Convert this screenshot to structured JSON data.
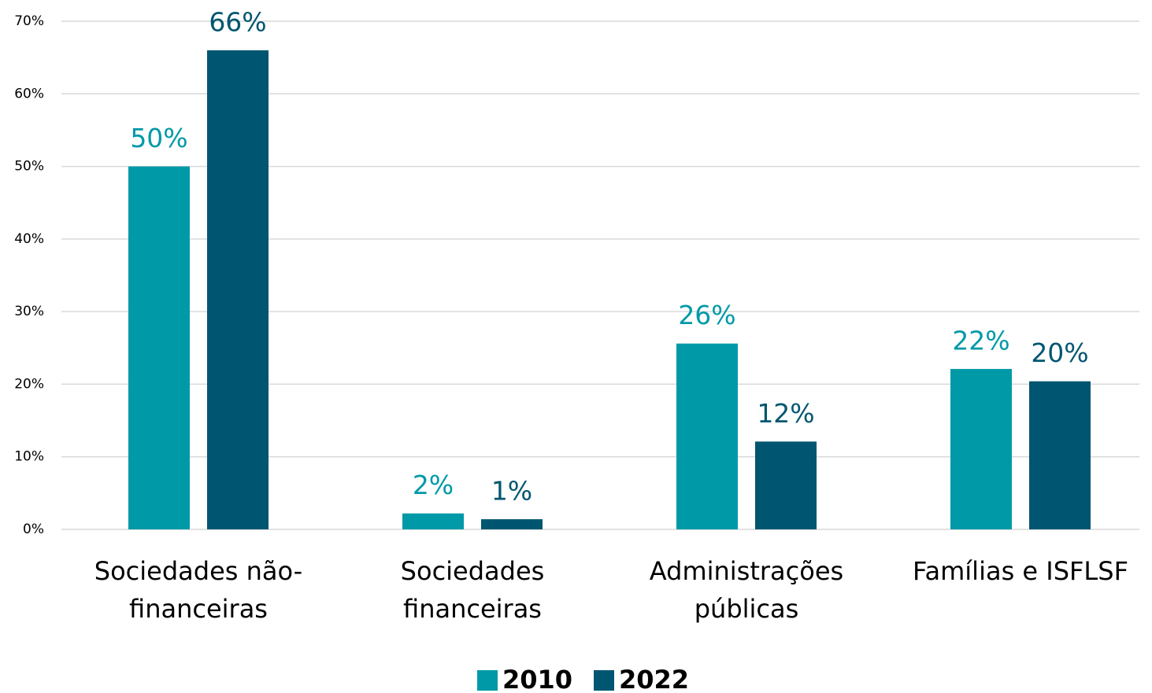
{
  "chart_data": {
    "type": "bar",
    "categories": [
      "Sociedades não-financeiras",
      "Sociedades financeiras",
      "Administrações públicas",
      "Famílias e ISFLSF"
    ],
    "series": [
      {
        "name": "2010",
        "color": "#0099a8",
        "values": [
          50,
          2.2,
          25.6,
          22.1
        ],
        "value_labels": [
          "50%",
          "2%",
          "26%",
          "22%"
        ]
      },
      {
        "name": "2022",
        "color": "#005670",
        "values": [
          66,
          1.4,
          12.1,
          20.4
        ],
        "value_labels": [
          "66%",
          "1%",
          "12%",
          "20%"
        ]
      }
    ],
    "ylim": [
      0,
      70
    ],
    "yticks": [
      {
        "value": 0,
        "label": "0%"
      },
      {
        "value": 10,
        "label": "10%"
      },
      {
        "value": 20,
        "label": "20%"
      },
      {
        "value": 30,
        "label": "30%"
      },
      {
        "value": 40,
        "label": "40%"
      },
      {
        "value": 50,
        "label": "50%"
      },
      {
        "value": 60,
        "label": "60%"
      },
      {
        "value": 70,
        "label": "70%"
      }
    ],
    "grid": true,
    "legend": "bottom"
  }
}
